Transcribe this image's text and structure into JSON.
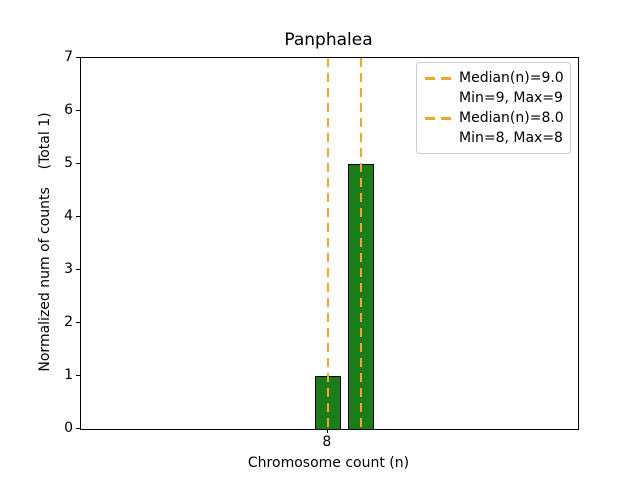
{
  "chart_data": {
    "type": "bar",
    "title": "Panphalea",
    "xlabel": "Chromosome count (n)",
    "ylabel": "Normalized num of counts    (Total 1)",
    "xlim": [
      0.52,
      15.58
    ],
    "ylim": [
      0,
      7
    ],
    "yticks": [
      0,
      1,
      2,
      3,
      4,
      5,
      6,
      7
    ],
    "xticks": [
      8
    ],
    "bar_width": 0.8,
    "bars": [
      {
        "x": 8,
        "height": 1
      },
      {
        "x": 9,
        "height": 5
      }
    ],
    "median_lines": [
      {
        "x": 9,
        "label": "Median(n)=9.0"
      },
      {
        "x": 8,
        "label": "Median(n)=8.0"
      }
    ],
    "legend": {
      "position": "upper right",
      "entries": [
        {
          "label": "Median(n)=9.0",
          "handle": "dashed-line"
        },
        {
          "label": "Min=9, Max=9",
          "handle": "none"
        },
        {
          "label": "Median(n)=8.0",
          "handle": "dashed-line"
        },
        {
          "label": "Min=8, Max=8",
          "handle": "none"
        }
      ]
    },
    "grid": false,
    "colors": {
      "bar_fill": "#1a7d1a",
      "bar_edge": "#000000",
      "median_line": "#efa72e",
      "axis": "#000000",
      "background": "#ffffff",
      "legend_border": "#cccccc"
    }
  }
}
